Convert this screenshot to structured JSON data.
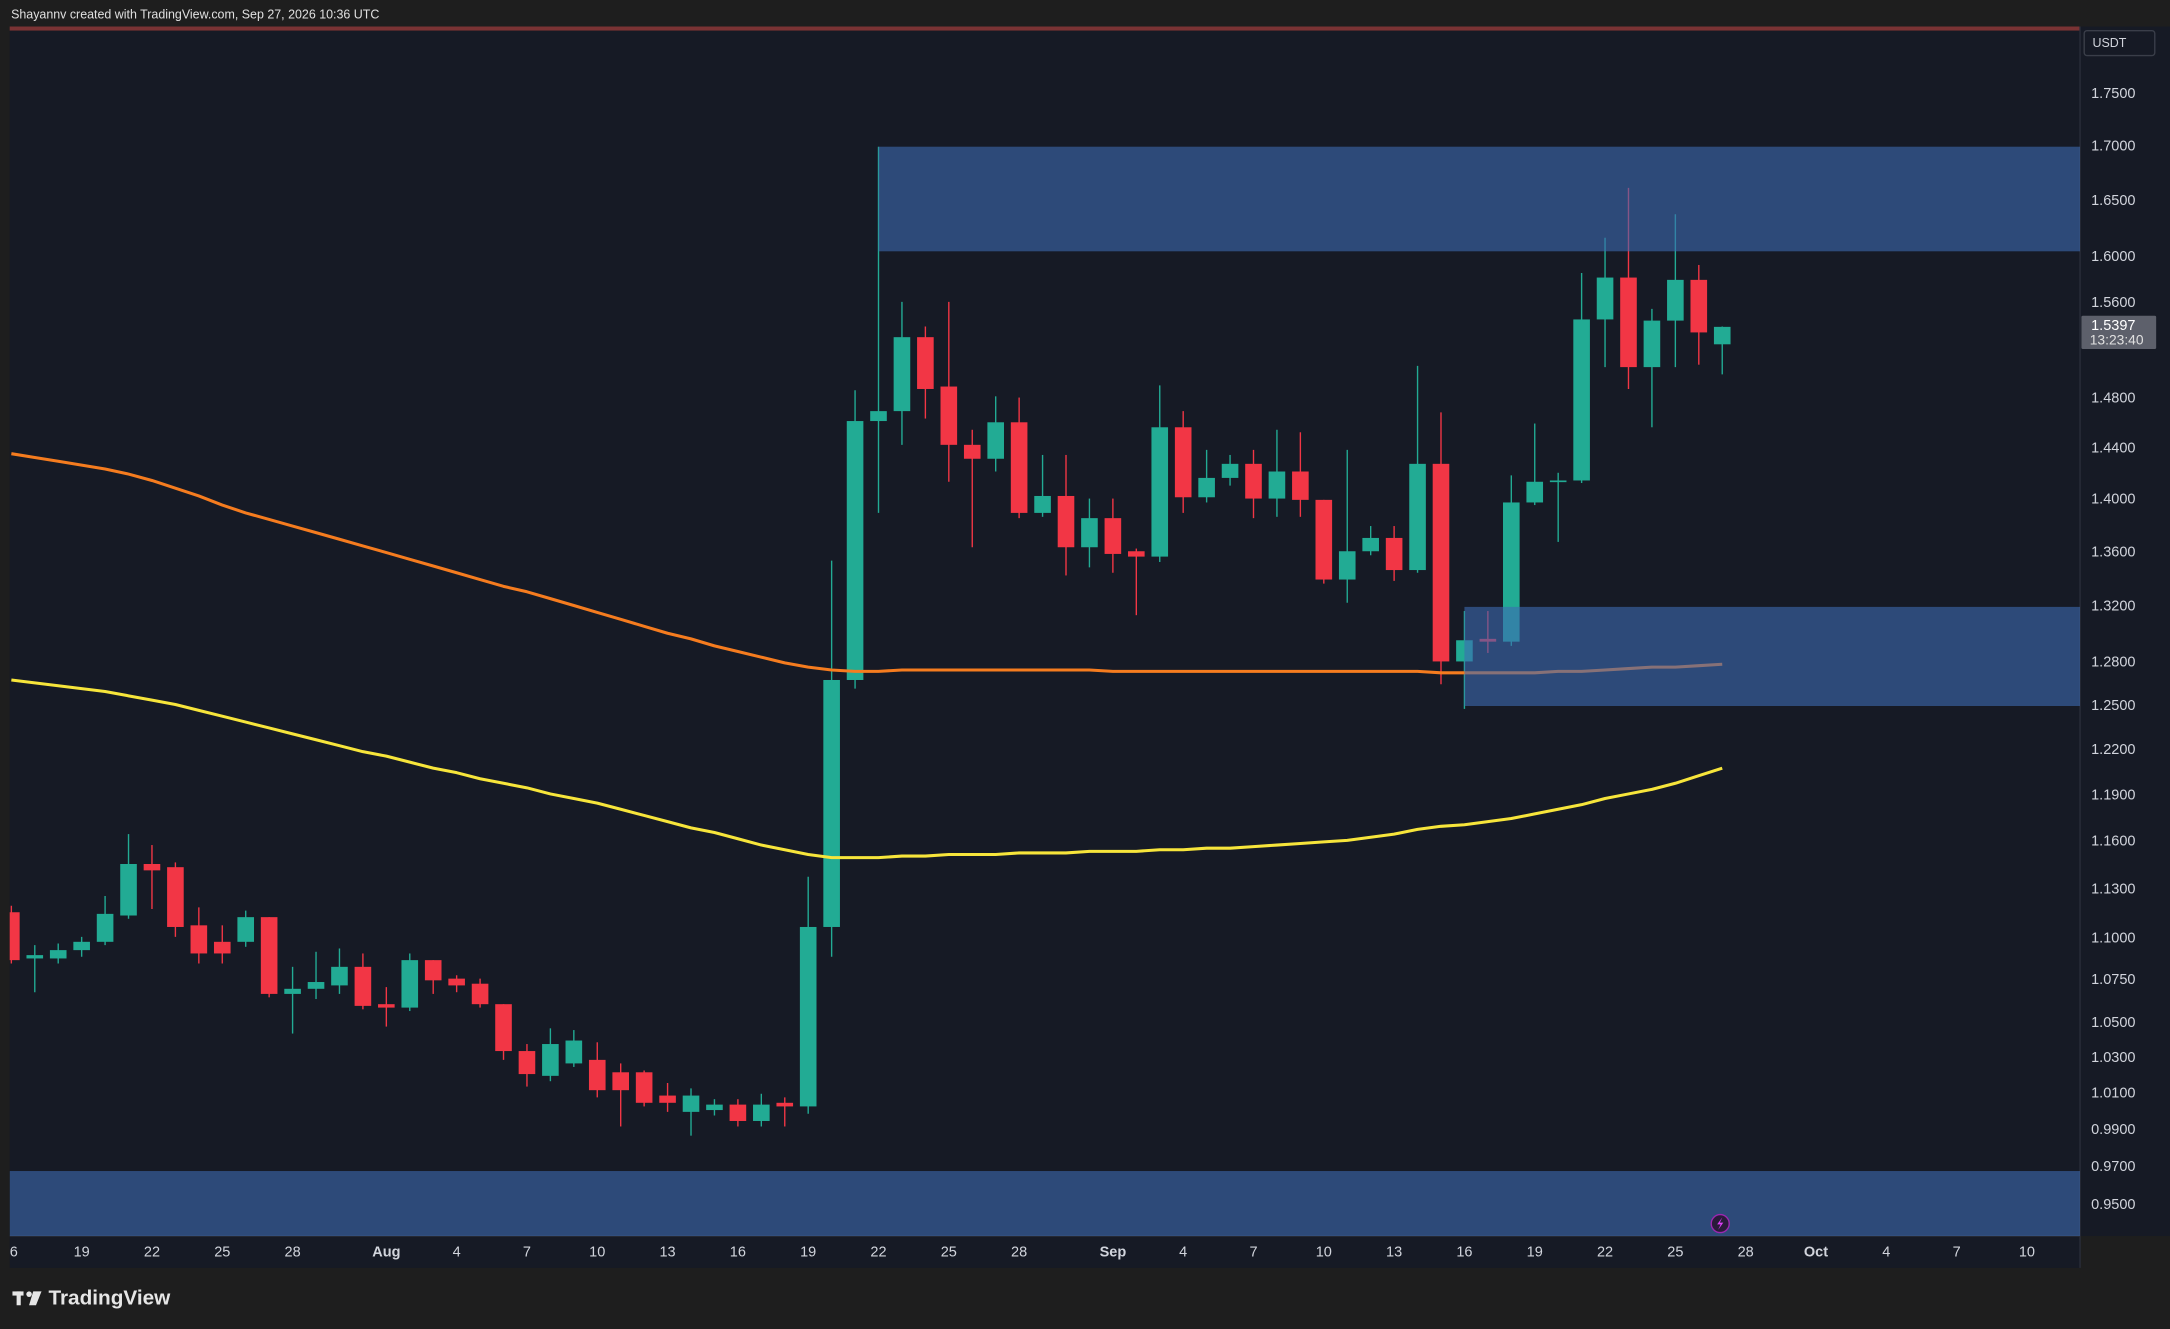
{
  "header": {
    "text": "Shayannv created with TradingView.com, Sep 27, 2026 10:36 UTC"
  },
  "chart_data": {
    "type": "candlestick",
    "currency": "USDT",
    "log_scale": true,
    "grid": false,
    "categories": [
      "6",
      null,
      null,
      "19",
      null,
      null,
      "22",
      null,
      null,
      "25",
      null,
      null,
      "28",
      null,
      null,
      null,
      "Aug",
      null,
      null,
      "4",
      null,
      null,
      "7",
      null,
      null,
      "10",
      null,
      null,
      "13",
      null,
      null,
      "16",
      null,
      null,
      "19",
      null,
      null,
      "22",
      null,
      null,
      "25",
      null,
      null,
      "28",
      null,
      null,
      null,
      "Sep",
      null,
      null,
      "4",
      null,
      null,
      "7",
      null,
      null,
      "10",
      null,
      null,
      "13",
      null,
      null,
      "16",
      null,
      null,
      "19",
      null,
      null,
      "22",
      null,
      null,
      "25",
      null,
      null,
      "28",
      null,
      null,
      "Oct",
      null,
      null,
      "4",
      null,
      null,
      "7",
      null,
      null,
      "10",
      null
    ],
    "open": [
      1.116,
      1.088,
      1.088,
      1.093,
      1.098,
      1.114,
      1.146,
      1.144,
      1.108,
      1.098,
      1.098,
      1.113,
      1.067,
      1.07,
      1.072,
      1.083,
      1.061,
      1.059,
      1.087,
      1.076,
      1.073,
      1.061,
      1.034,
      1.02,
      1.027,
      1.029,
      1.022,
      1.022,
      1.009,
      1.0,
      1.001,
      1.004,
      0.995,
      1.005,
      1.003,
      1.107,
      1.268,
      1.462,
      1.47,
      1.531,
      1.49,
      1.443,
      1.432,
      1.461,
      1.39,
      1.403,
      1.364,
      1.386,
      1.361,
      1.357,
      1.457,
      1.402,
      1.417,
      1.428,
      1.401,
      1.422,
      1.4,
      1.34,
      1.361,
      1.371,
      1.347,
      1.428,
      1.281,
      1.297,
      1.295,
      1.398,
      1.414,
      1.415,
      1.546,
      1.582,
      1.506,
      1.545,
      1.58,
      1.525,
      null,
      null,
      null,
      null,
      null,
      null,
      null,
      null,
      null,
      null,
      null,
      null,
      null,
      null
    ],
    "high": [
      1.12,
      1.096,
      1.097,
      1.101,
      1.126,
      1.165,
      1.158,
      1.147,
      1.119,
      1.108,
      1.117,
      1.113,
      1.083,
      1.092,
      1.094,
      1.091,
      1.071,
      1.091,
      1.087,
      1.078,
      1.076,
      1.061,
      1.038,
      1.047,
      1.046,
      1.039,
      1.027,
      1.023,
      1.016,
      1.013,
      1.007,
      1.007,
      1.01,
      1.008,
      1.138,
      1.354,
      1.487,
      1.7,
      1.561,
      1.54,
      1.561,
      1.455,
      1.482,
      1.481,
      1.435,
      1.435,
      1.401,
      1.401,
      1.363,
      1.491,
      1.47,
      1.439,
      1.435,
      1.439,
      1.455,
      1.453,
      1.4,
      1.439,
      1.38,
      1.38,
      1.507,
      1.469,
      1.317,
      1.317,
      1.419,
      1.46,
      1.421,
      1.586,
      1.617,
      1.662,
      1.555,
      1.638,
      1.593,
      1.54,
      null,
      null,
      null,
      null,
      null,
      null,
      null,
      null,
      null,
      null,
      null,
      null,
      null,
      null
    ],
    "low": [
      1.085,
      1.068,
      1.085,
      1.089,
      1.096,
      1.112,
      1.118,
      1.101,
      1.085,
      1.085,
      1.095,
      1.065,
      1.044,
      1.064,
      1.067,
      1.058,
      1.048,
      1.057,
      1.067,
      1.068,
      1.059,
      1.029,
      1.014,
      1.017,
      1.025,
      1.008,
      0.992,
      1.003,
      1.0,
      0.987,
      0.998,
      0.992,
      0.992,
      0.992,
      0.999,
      1.089,
      1.262,
      1.39,
      1.443,
      1.464,
      1.414,
      1.364,
      1.422,
      1.386,
      1.387,
      1.343,
      1.349,
      1.345,
      1.314,
      1.353,
      1.39,
      1.398,
      1.411,
      1.386,
      1.387,
      1.387,
      1.337,
      1.323,
      1.358,
      1.339,
      1.345,
      1.265,
      1.248,
      1.287,
      1.292,
      1.396,
      1.368,
      1.413,
      1.506,
      1.488,
      1.457,
      1.506,
      1.508,
      1.5,
      null,
      null,
      null,
      null,
      null,
      null,
      null,
      null,
      null,
      null,
      null,
      null,
      null,
      null
    ],
    "close": [
      1.087,
      1.09,
      1.093,
      1.098,
      1.115,
      1.146,
      1.142,
      1.107,
      1.091,
      1.091,
      1.113,
      1.067,
      1.07,
      1.074,
      1.083,
      1.06,
      1.059,
      1.087,
      1.075,
      1.072,
      1.061,
      1.034,
      1.021,
      1.038,
      1.04,
      1.012,
      1.012,
      1.005,
      1.005,
      1.009,
      1.004,
      0.995,
      1.004,
      1.003,
      1.107,
      1.268,
      1.462,
      1.47,
      1.531,
      1.488,
      1.443,
      1.432,
      1.461,
      1.39,
      1.403,
      1.364,
      1.386,
      1.359,
      1.357,
      1.457,
      1.402,
      1.417,
      1.428,
      1.401,
      1.422,
      1.4,
      1.34,
      1.361,
      1.371,
      1.347,
      1.428,
      1.281,
      1.296,
      1.295,
      1.398,
      1.414,
      1.415,
      1.546,
      1.582,
      1.506,
      1.545,
      1.58,
      1.535,
      1.5397,
      null,
      null,
      null,
      null,
      null,
      null,
      null,
      null,
      null,
      null,
      null,
      null,
      null,
      null
    ],
    "up_color": "#22ab94",
    "down_color": "#f23645",
    "lines": [
      {
        "color": "#f57c1f",
        "values": [
          1.436,
          1.433,
          1.43,
          1.427,
          1.424,
          1.42,
          1.415,
          1.409,
          1.403,
          1.396,
          1.39,
          1.385,
          1.38,
          1.375,
          1.37,
          1.365,
          1.36,
          1.355,
          1.35,
          1.345,
          1.34,
          1.335,
          1.331,
          1.326,
          1.321,
          1.316,
          1.311,
          1.306,
          1.301,
          1.297,
          1.292,
          1.288,
          1.284,
          1.28,
          1.277,
          1.275,
          1.274,
          1.274,
          1.275,
          1.275,
          1.275,
          1.275,
          1.275,
          1.275,
          1.275,
          1.275,
          1.275,
          1.274,
          1.274,
          1.274,
          1.274,
          1.274,
          1.274,
          1.274,
          1.274,
          1.274,
          1.274,
          1.274,
          1.274,
          1.274,
          1.274,
          1.273,
          1.273,
          1.273,
          1.273,
          1.273,
          1.274,
          1.274,
          1.275,
          1.276,
          1.277,
          1.277,
          1.278,
          1.279,
          null,
          null,
          null,
          null,
          null,
          null,
          null,
          null,
          null,
          null,
          null,
          null,
          null,
          null
        ]
      },
      {
        "color": "#f7e53b",
        "values": [
          1.268,
          1.266,
          1.264,
          1.262,
          1.26,
          1.257,
          1.254,
          1.251,
          1.247,
          1.243,
          1.239,
          1.235,
          1.231,
          1.227,
          1.223,
          1.219,
          1.216,
          1.212,
          1.208,
          1.205,
          1.201,
          1.198,
          1.195,
          1.191,
          1.188,
          1.185,
          1.181,
          1.177,
          1.173,
          1.169,
          1.166,
          1.162,
          1.158,
          1.155,
          1.152,
          1.15,
          1.15,
          1.15,
          1.151,
          1.151,
          1.152,
          1.152,
          1.152,
          1.153,
          1.153,
          1.153,
          1.154,
          1.154,
          1.154,
          1.155,
          1.155,
          1.156,
          1.156,
          1.157,
          1.158,
          1.159,
          1.16,
          1.161,
          1.163,
          1.165,
          1.168,
          1.17,
          1.171,
          1.173,
          1.175,
          1.178,
          1.181,
          1.184,
          1.188,
          1.191,
          1.194,
          1.198,
          1.203,
          1.208,
          null,
          null,
          null,
          null,
          null,
          null,
          null,
          null,
          null,
          null,
          null,
          null,
          null,
          null
        ]
      }
    ],
    "zones": [
      {
        "start": 37,
        "low": 1.605,
        "high": 1.7
      },
      {
        "start": 62,
        "low": 1.25,
        "high": 1.32
      },
      {
        "start": 0,
        "low": 0.934,
        "high": 0.968
      }
    ],
    "zone_color": "#3d6bb3",
    "last_price": 1.5397,
    "countdown": "13:23:40",
    "ylim": [
      0.934,
      1.812
    ],
    "yticks": [
      {
        "value": 1.75,
        "label": "1.7500"
      },
      {
        "value": 1.7,
        "label": "1.7000"
      },
      {
        "value": 1.65,
        "label": "1.6500"
      },
      {
        "value": 1.6,
        "label": "1.6000"
      },
      {
        "value": 1.56,
        "label": "1.5600"
      },
      {
        "value": 1.48,
        "label": "1.4800"
      },
      {
        "value": 1.44,
        "label": "1.4400"
      },
      {
        "value": 1.4,
        "label": "1.4000"
      },
      {
        "value": 1.36,
        "label": "1.3600"
      },
      {
        "value": 1.32,
        "label": "1.3200"
      },
      {
        "value": 1.28,
        "label": "1.2800"
      },
      {
        "value": 1.25,
        "label": "1.2500"
      },
      {
        "value": 1.22,
        "label": "1.2200"
      },
      {
        "value": 1.19,
        "label": "1.1900"
      },
      {
        "value": 1.16,
        "label": "1.1600"
      },
      {
        "value": 1.13,
        "label": "1.1300"
      },
      {
        "value": 1.1,
        "label": "1.1000"
      },
      {
        "value": 1.075,
        "label": "1.0750"
      },
      {
        "value": 1.05,
        "label": "1.0500"
      },
      {
        "value": 1.03,
        "label": "1.0300"
      },
      {
        "value": 1.01,
        "label": "1.0100"
      },
      {
        "value": 0.99,
        "label": "0.9900"
      },
      {
        "value": 0.97,
        "label": "0.9700"
      },
      {
        "value": 0.95,
        "label": "0.9500"
      }
    ]
  },
  "footer": {
    "logo": "TradingView"
  }
}
